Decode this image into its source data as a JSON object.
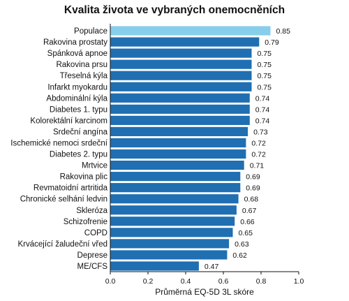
{
  "chart_data": {
    "type": "bar",
    "orientation": "horizontal",
    "title": "Kvalita života ve vybraných onemocněních",
    "xlabel": "Průměrná EQ-5D 3L skóre",
    "ylabel": "",
    "xlim": [
      0.0,
      1.0
    ],
    "xticks": [
      "0.0",
      "0.2",
      "0.4",
      "0.6",
      "0.8",
      "1.0"
    ],
    "grid": false,
    "categories": [
      "Populace",
      "Rakovina prostaty",
      "Spánková apnoe",
      "Rakovina prsu",
      "Třeselná kýla",
      "Infarkt myokardu",
      "Abdominální kýla",
      "Diabetes 1. typu",
      "Kolorektální karcinom",
      "Srdeční angína",
      "Ischemické nemoci srdeční",
      "Diabetes 2. typu",
      "Mrtvice",
      "Rakovina plic",
      "Revmatoidní artritida",
      "Chronické selhání ledvin",
      "Skleróza",
      "Schizofrenie",
      "COPD",
      "Krvácející žaludeční vřed",
      "Deprese",
      "ME/CFS"
    ],
    "values": [
      0.85,
      0.79,
      0.75,
      0.75,
      0.75,
      0.75,
      0.74,
      0.74,
      0.74,
      0.73,
      0.72,
      0.72,
      0.71,
      0.69,
      0.69,
      0.68,
      0.67,
      0.66,
      0.65,
      0.63,
      0.62,
      0.47
    ],
    "value_labels": [
      "0.85",
      "0.79",
      "0.75",
      "0.75",
      "0.75",
      "0.75",
      "0.74",
      "0.74",
      "0.74",
      "0.73",
      "0.72",
      "0.72",
      "0.71",
      "0.69",
      "0.69",
      "0.68",
      "0.67",
      "0.66",
      "0.65",
      "0.63",
      "0.62",
      "0.47"
    ],
    "colors": {
      "highlight": "#87ceeb",
      "default": "#1f6fb2"
    },
    "highlight_index": 0
  }
}
